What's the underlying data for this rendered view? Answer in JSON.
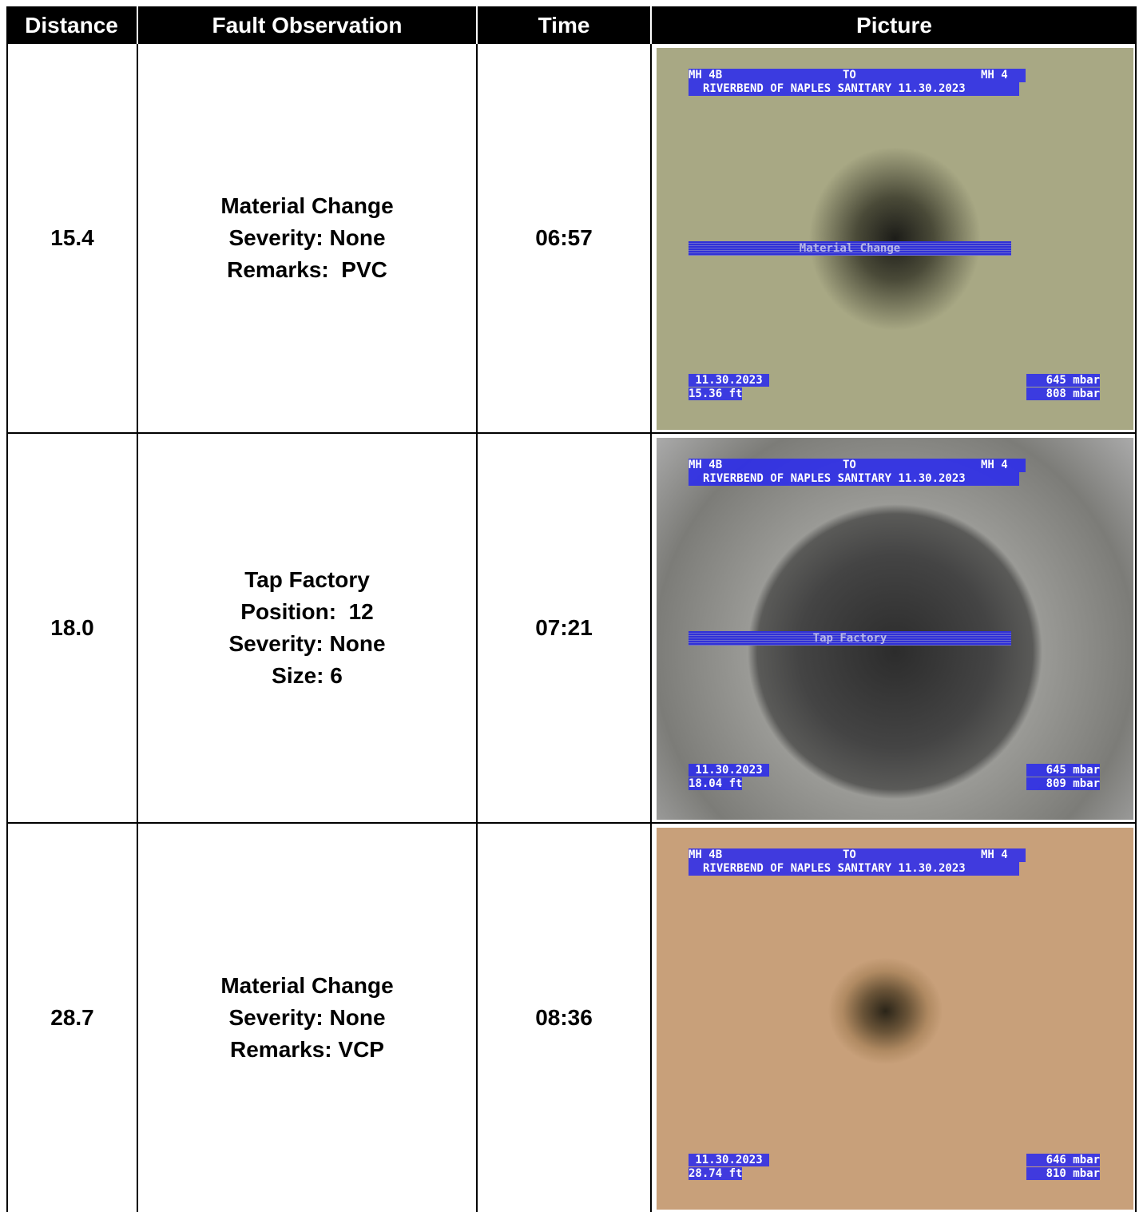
{
  "header": [
    "Distance",
    "Fault Observation",
    "Time",
    "Picture"
  ],
  "rows": [
    {
      "distance": "15.4",
      "observation": [
        "Material Change",
        "Severity: None",
        "Remarks:  PVC"
      ],
      "time": "06:57",
      "picture": {
        "from": "MH 4B",
        "to_label": "TO",
        "to": "MH 4",
        "project": "RIVERBEND OF NAPLES SANITARY 11.30.2023",
        "fault": "Material Change",
        "date": "11.30.2023",
        "footage": "15.36 ft",
        "pressure_1": "645 mbar",
        "pressure_2": "808 mbar"
      }
    },
    {
      "distance": "18.0",
      "observation": [
        "Tap Factory",
        "Position:  12",
        "Severity: None",
        "Size: 6"
      ],
      "time": "07:21",
      "picture": {
        "from": "MH 4B",
        "to_label": "TO",
        "to": "MH 4",
        "project": "RIVERBEND OF NAPLES SANITARY 11.30.2023",
        "fault": "Tap Factory",
        "date": "11.30.2023",
        "footage": "18.04 ft",
        "pressure_1": "645 mbar",
        "pressure_2": "809 mbar"
      }
    },
    {
      "distance": "28.7",
      "observation": [
        "Material Change",
        "Severity: None",
        "Remarks: VCP"
      ],
      "time": "08:36",
      "picture": {
        "from": "MH 4B",
        "to_label": "TO",
        "to": "MH 4",
        "project": "RIVERBEND OF NAPLES SANITARY 11.30.2023",
        "date": "11.30.2023",
        "footage": "28.74 ft",
        "pressure_1": "646 mbar",
        "pressure_2": "810 mbar"
      }
    }
  ]
}
